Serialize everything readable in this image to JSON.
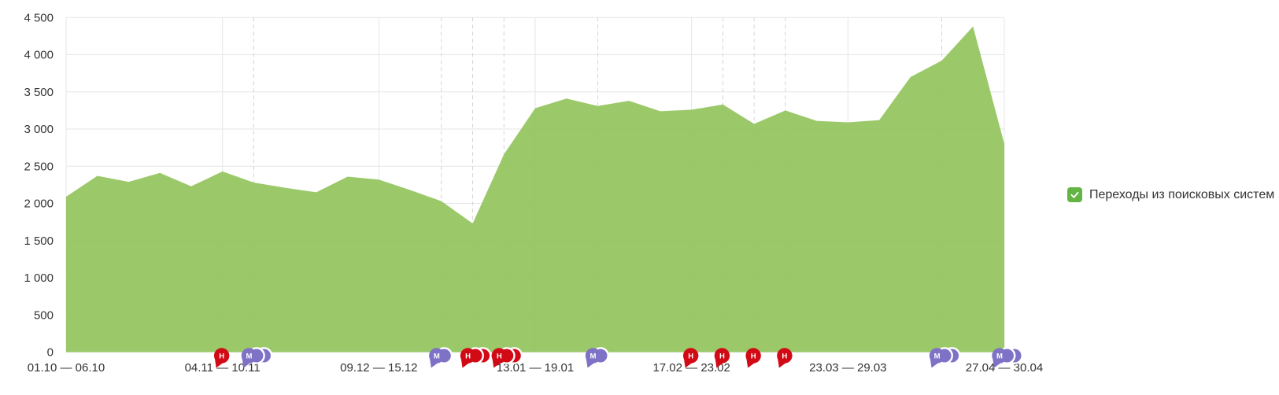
{
  "chart_data": {
    "type": "area",
    "title": "",
    "series": [
      {
        "name": "Переходы из поисковых систем",
        "values": [
          2090,
          2370,
          2290,
          2410,
          2230,
          2430,
          2280,
          2210,
          2150,
          2360,
          2320,
          2180,
          2030,
          1730,
          2660,
          3280,
          3410,
          3310,
          3380,
          3240,
          3260,
          3330,
          3070,
          3250,
          3110,
          3090,
          3120,
          3700,
          3920,
          4380,
          2800
        ]
      }
    ],
    "n_points": 31,
    "x_tick_indices": [
      0,
      5,
      10,
      15,
      20,
      25,
      30
    ],
    "x_tick_labels": [
      "01.10 — 06.10",
      "04.11 — 10.11",
      "09.12 — 15.12",
      "13.01 — 19.01",
      "17.02 — 23.02",
      "23.03 — 29.03",
      "27.04 — 30.04"
    ],
    "y_tick_labels": [
      "0",
      "500",
      "1 000",
      "1 500",
      "2 000",
      "2 500",
      "3 000",
      "3 500",
      "4 000",
      "4 500"
    ],
    "y_tick_values": [
      0,
      500,
      1000,
      1500,
      2000,
      2500,
      3000,
      3500,
      4000,
      4500
    ],
    "ylim": [
      0,
      4500
    ],
    "grid": true,
    "legend_position": "right",
    "area_color": "#93c55e",
    "markers": [
      {
        "index": 5,
        "letter": "Н",
        "count": 1,
        "color": "#d10a16"
      },
      {
        "index": 6,
        "letter": "М",
        "count": 3,
        "color": "#7e72c6"
      },
      {
        "index": 12,
        "letter": "М",
        "count": 2,
        "color": "#7e72c6"
      },
      {
        "index": 13,
        "letter": "Н",
        "count": 3,
        "color": "#d10a16"
      },
      {
        "index": 14,
        "letter": "Н",
        "count": 3,
        "color": "#d10a16"
      },
      {
        "index": 17,
        "letter": "М",
        "count": 2,
        "color": "#7e72c6"
      },
      {
        "index": 20,
        "letter": "Н",
        "count": 1,
        "color": "#d10a16"
      },
      {
        "index": 21,
        "letter": "Н",
        "count": 1,
        "color": "#d10a16"
      },
      {
        "index": 22,
        "letter": "Н",
        "count": 1,
        "color": "#d10a16"
      },
      {
        "index": 23,
        "letter": "Н",
        "count": 1,
        "color": "#d10a16"
      },
      {
        "index": 28,
        "letter": "М",
        "count": 3,
        "color": "#7e72c6"
      },
      {
        "index": 30,
        "letter": "М",
        "count": 3,
        "color": "#7e72c6"
      }
    ]
  },
  "legend": {
    "label": "Переходы из поисковых систем",
    "checkbox_color": "#64b445",
    "checked": true
  },
  "colors": {
    "grid_line": "#e6e6e6",
    "dashed_marker_line": "#d4d4d4",
    "axis_text": "#333333",
    "background": "#ffffff"
  }
}
